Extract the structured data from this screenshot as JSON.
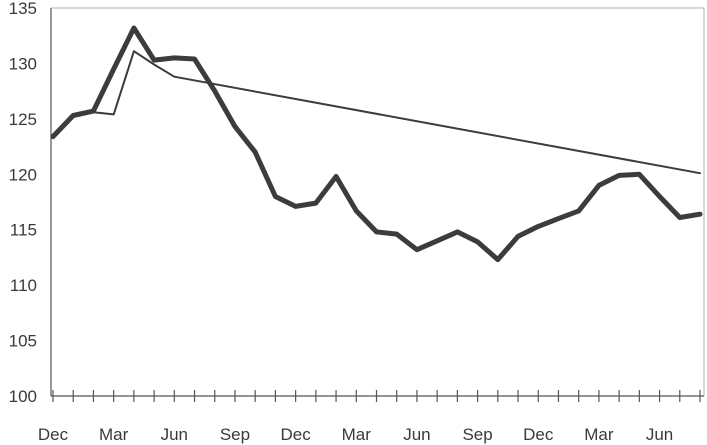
{
  "chart_data": {
    "type": "line",
    "title": "",
    "xlabel": "",
    "ylabel": "",
    "ylim": [
      100,
      135
    ],
    "yticks": [
      100,
      105,
      110,
      115,
      120,
      125,
      130,
      135
    ],
    "x_tick_labels": [
      "Dec",
      "Mar",
      "Jun",
      "Sep",
      "Dec",
      "Mar",
      "Jun",
      "Sep",
      "Dec",
      "Mar",
      "Jun"
    ],
    "x_tick_label_months": [
      0,
      3,
      6,
      9,
      12,
      15,
      18,
      21,
      24,
      27,
      30
    ],
    "x_month_range": [
      0,
      32
    ],
    "x_minor_ticks_every_month": true,
    "grid": false,
    "series": [
      {
        "style": "thick",
        "color": "#3c3c3c",
        "x": [
          0,
          1,
          2,
          3,
          4,
          5,
          6,
          7,
          8,
          9,
          10,
          11,
          12,
          13,
          14,
          15,
          16,
          17,
          18,
          19,
          20,
          21,
          22,
          23,
          24,
          25,
          26,
          27,
          28,
          29,
          30,
          31,
          32
        ],
        "values": [
          123.4,
          125.3,
          125.7,
          129.5,
          133.2,
          130.3,
          130.5,
          130.4,
          127.5,
          124.3,
          122.0,
          118.0,
          117.1,
          117.4,
          119.8,
          116.7,
          114.8,
          114.6,
          113.2,
          114.0,
          114.8,
          113.9,
          112.3,
          114.4,
          115.3,
          116.0,
          116.7,
          119.0,
          119.9,
          120.0,
          118.0,
          116.1,
          116.4
        ]
      },
      {
        "style": "thin",
        "color": "#3c3c3c",
        "x": [
          1,
          2,
          3,
          4,
          5,
          6,
          32
        ],
        "values": [
          125.4,
          125.6,
          125.4,
          131.1,
          129.9,
          128.8,
          120.1
        ]
      }
    ]
  }
}
